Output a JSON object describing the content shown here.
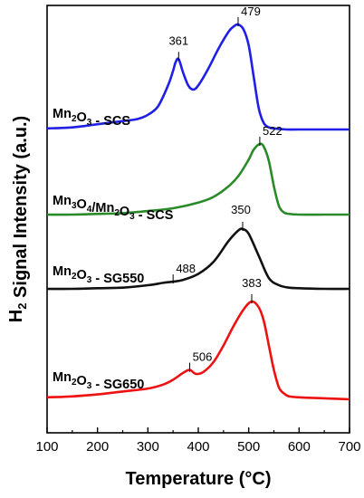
{
  "chart_data": {
    "type": "line",
    "title": "",
    "xlabel": "Temperature (°C)",
    "ylabel_parts": [
      "H",
      "2",
      " Signal Intensity (a.u.)"
    ],
    "xlim": [
      100,
      700
    ],
    "x_ticks": [
      100,
      200,
      300,
      400,
      500,
      600,
      700
    ],
    "y_ticks_shown": false,
    "grid": false,
    "legend": "none",
    "series": [
      {
        "name_parts": [
          "Mn",
          "2",
          "O",
          "3",
          " - SCS"
        ],
        "color": "#1f1fe6",
        "peaks": [
          361,
          479
        ],
        "x": [
          100,
          150,
          200,
          250,
          280,
          300,
          320,
          340,
          350,
          355,
          361,
          370,
          380,
          390,
          400,
          420,
          440,
          460,
          470,
          479,
          490,
          500,
          510,
          520,
          530,
          540,
          550,
          575,
          600,
          650,
          700
        ],
        "y": [
          0.01,
          0.02,
          0.05,
          0.08,
          0.1,
          0.14,
          0.22,
          0.42,
          0.56,
          0.64,
          0.67,
          0.54,
          0.42,
          0.38,
          0.42,
          0.58,
          0.77,
          0.93,
          0.98,
          1.0,
          0.95,
          0.8,
          0.5,
          0.2,
          0.06,
          0.02,
          0.01,
          0.0,
          0.0,
          0.0,
          0.0
        ]
      },
      {
        "name_parts": [
          "Mn",
          "3",
          "O",
          "4",
          "/Mn",
          "2",
          "O",
          "3",
          " - SCS"
        ],
        "color": "#2a8a2a",
        "peaks": [
          522
        ],
        "x": [
          100,
          150,
          200,
          250,
          300,
          350,
          400,
          430,
          460,
          480,
          500,
          510,
          522,
          530,
          540,
          550,
          560,
          570,
          580,
          600,
          650,
          700
        ],
        "y": [
          0.0,
          0.0,
          0.01,
          0.02,
          0.05,
          0.09,
          0.17,
          0.25,
          0.4,
          0.55,
          0.78,
          0.92,
          1.0,
          0.96,
          0.76,
          0.4,
          0.12,
          0.03,
          0.01,
          0.0,
          0.0,
          0.0
        ]
      },
      {
        "name_parts": [
          "Mn",
          "2",
          "O",
          "3",
          " - SG550"
        ],
        "color": "#111111",
        "peaks": [
          350,
          488
        ],
        "x": [
          100,
          150,
          200,
          250,
          300,
          330,
          350,
          370,
          400,
          430,
          460,
          480,
          488,
          500,
          520,
          540,
          560,
          580,
          600,
          650,
          700
        ],
        "y": [
          0.0,
          0.0,
          0.01,
          0.02,
          0.06,
          0.1,
          0.12,
          0.15,
          0.25,
          0.45,
          0.8,
          0.98,
          1.0,
          0.92,
          0.55,
          0.18,
          0.06,
          0.02,
          0.01,
          0.0,
          0.0
        ]
      },
      {
        "name_parts": [
          "Mn",
          "2",
          "O",
          "3",
          " - SG650"
        ],
        "color": "#ee1111",
        "peaks": [
          383,
          506
        ],
        "x": [
          100,
          150,
          200,
          250,
          300,
          330,
          350,
          370,
          383,
          395,
          410,
          430,
          450,
          470,
          490,
          506,
          520,
          530,
          540,
          550,
          560,
          570,
          580,
          600,
          650,
          700
        ],
        "y": [
          0.02,
          0.03,
          0.05,
          0.08,
          0.11,
          0.15,
          0.2,
          0.27,
          0.3,
          0.26,
          0.28,
          0.38,
          0.55,
          0.75,
          0.92,
          1.0,
          0.94,
          0.8,
          0.55,
          0.3,
          0.12,
          0.06,
          0.03,
          0.02,
          0.01,
          0.0
        ]
      }
    ],
    "peak_labels": [
      "361",
      "479",
      "522",
      "488",
      "350",
      "506",
      "383"
    ]
  }
}
